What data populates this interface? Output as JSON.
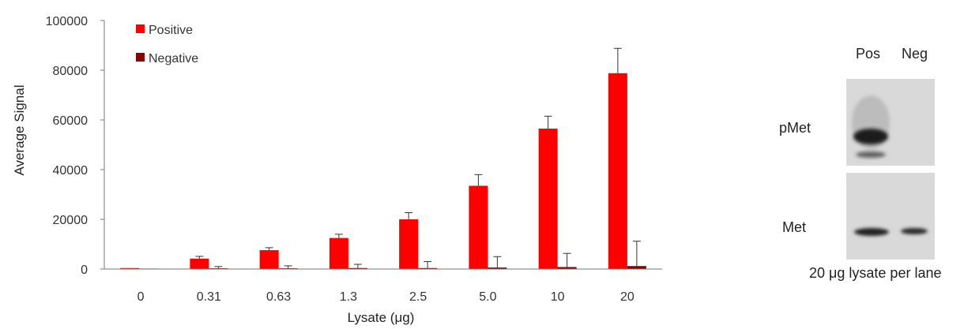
{
  "chart_data": {
    "type": "bar",
    "categories": [
      "0",
      "0.31",
      "0.63",
      "1.3",
      "2.5",
      "5.0",
      "10",
      "20"
    ],
    "series": [
      {
        "name": "Positive",
        "color": "#ff0000",
        "values": [
          400,
          4200,
          7600,
          12500,
          20000,
          33500,
          56500,
          78800
        ],
        "errors": [
          0,
          900,
          1000,
          1500,
          2700,
          4500,
          5000,
          10000
        ]
      },
      {
        "name": "Negative",
        "color": "#8b0000",
        "values": [
          200,
          300,
          300,
          400,
          400,
          600,
          800,
          1200
        ],
        "errors": [
          0,
          700,
          1000,
          1500,
          2600,
          4400,
          5500,
          10000
        ]
      }
    ],
    "xlabel": "Lysate (μg)",
    "ylabel": "Average Signal",
    "ylim": [
      0,
      100000
    ],
    "yticks": [
      0,
      20000,
      40000,
      60000,
      80000,
      100000
    ],
    "grid": false,
    "legend": "top-left"
  },
  "blot": {
    "lane_labels": [
      "Pos",
      "Neg"
    ],
    "row_labels": [
      "pMet",
      "Met"
    ],
    "caption": "20 μg lysate per lane"
  }
}
